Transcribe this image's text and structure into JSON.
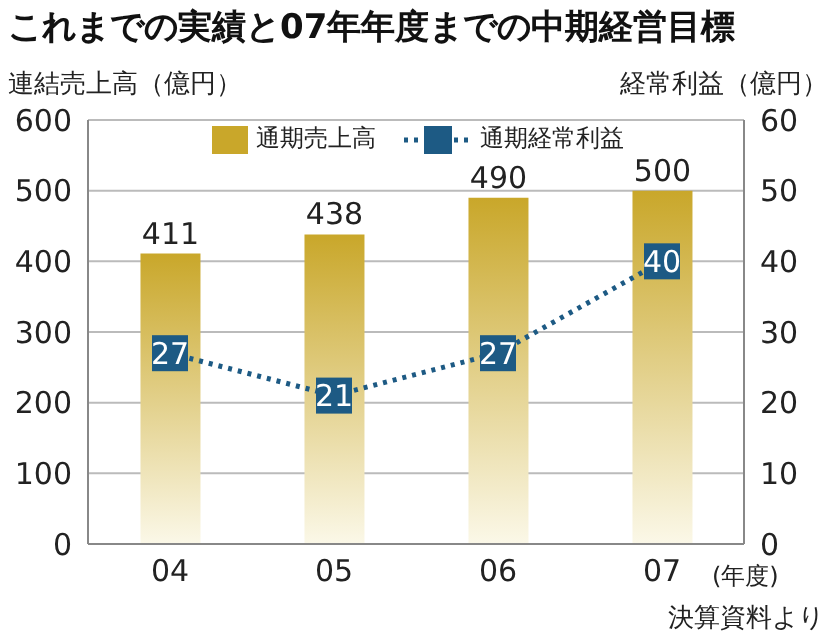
{
  "chart_data": {
    "type": "bar",
    "title": "これまでの実績と07年年度までの中期経営目標",
    "ylabel": "連結売上高（億円）",
    "y2label": "経常利益（億円）",
    "categories": [
      "04",
      "05",
      "06",
      "07"
    ],
    "series": [
      {
        "name": "通期売上高",
        "color": "#c9a72a",
        "values": [
          411,
          438,
          490,
          500
        ]
      },
      {
        "name": "通期経常利益",
        "type": "line",
        "axis": "y2",
        "color": "#1d5a84",
        "values": [
          27,
          21,
          27,
          40
        ],
        "line_style": "dotted",
        "marker": "square"
      }
    ],
    "ylim": [
      0,
      600
    ],
    "yticks": [
      0,
      100,
      200,
      300,
      400,
      500,
      600
    ],
    "y2lim": [
      0,
      60
    ],
    "y2ticks": [
      0,
      10,
      20,
      30,
      40,
      50,
      60
    ],
    "grid": "y",
    "legend": "top",
    "data_labels": true,
    "annotations": [
      "(年度)",
      "決算資料より"
    ]
  }
}
